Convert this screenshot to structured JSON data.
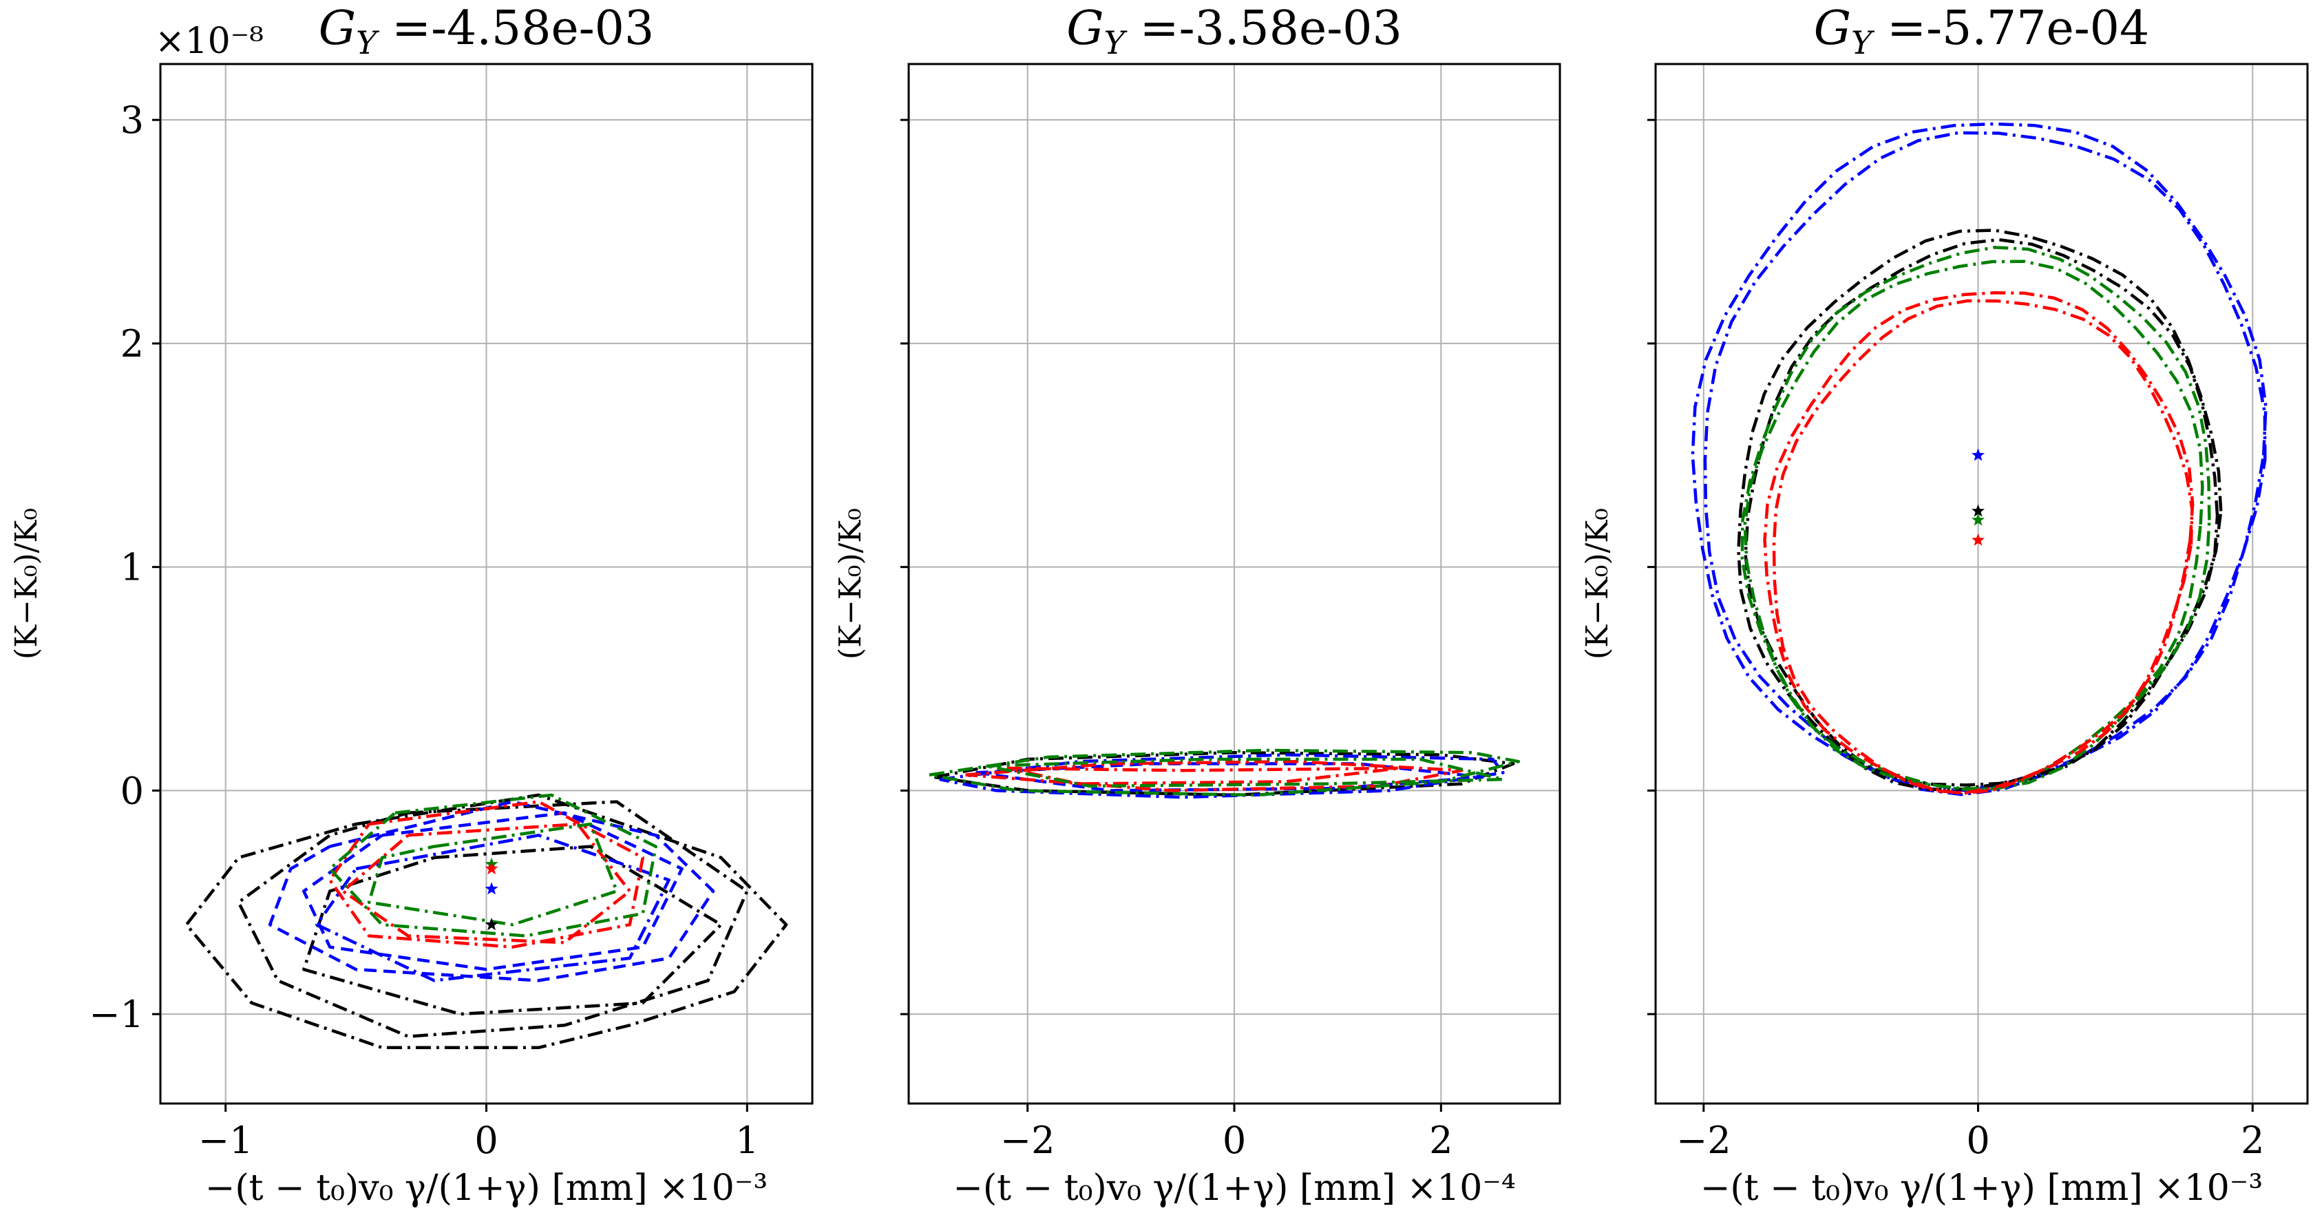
{
  "figure": {
    "colors": {
      "black": "#000000",
      "blue": "#0000ff",
      "red": "#ff0000",
      "green": "#008000",
      "grid": "#b0b0b0"
    }
  },
  "chart_data": [
    {
      "type": "line",
      "title": "G_Y =-4.58e-03",
      "title_parts": {
        "symbol": "G",
        "sub": "Y",
        "value": " =-4.58e-03"
      },
      "xlabel": "−(t − t₀)v₀ γ/(1+γ) [mm]",
      "ylabel": "(K−K₀)/K₀",
      "x_offset_text": "×10⁻³",
      "y_offset_text": "×10⁻⁸",
      "xlim": [
        -1.25,
        1.25
      ],
      "ylim": [
        -1.4,
        3.25
      ],
      "xticks": [
        -1,
        0,
        1
      ],
      "xtick_labels": [
        "−1",
        "0",
        "1"
      ],
      "yticks": [
        -1,
        0,
        1,
        2,
        3
      ],
      "ytick_labels": [
        "−1",
        "0",
        "1",
        "2",
        "3"
      ],
      "grid": true,
      "series": [
        {
          "color": "black",
          "dash": "dashdot",
          "points": [
            [
              -0.5,
              -0.15
            ],
            [
              0.2,
              -0.02
            ],
            [
              0.9,
              -0.3
            ],
            [
              1.15,
              -0.6
            ],
            [
              0.95,
              -0.9
            ],
            [
              0.55,
              -1.05
            ],
            [
              0.2,
              -1.15
            ],
            [
              -0.4,
              -1.15
            ],
            [
              -0.9,
              -0.95
            ],
            [
              -1.15,
              -0.6
            ],
            [
              -0.95,
              -0.3
            ],
            [
              -0.5,
              -0.15
            ]
          ]
        },
        {
          "color": "black",
          "dash": "dashdot",
          "points": [
            [
              -0.3,
              -0.1
            ],
            [
              0.5,
              -0.05
            ],
            [
              1.0,
              -0.45
            ],
            [
              0.85,
              -0.85
            ],
            [
              0.3,
              -1.05
            ],
            [
              -0.3,
              -1.1
            ],
            [
              -0.8,
              -0.85
            ],
            [
              -0.95,
              -0.5
            ],
            [
              -0.6,
              -0.2
            ],
            [
              -0.3,
              -0.1
            ]
          ]
        },
        {
          "color": "black",
          "dash": "dashdot",
          "points": [
            [
              -0.2,
              -0.3
            ],
            [
              0.4,
              -0.25
            ],
            [
              0.9,
              -0.6
            ],
            [
              0.6,
              -0.95
            ],
            [
              -0.1,
              -1.0
            ],
            [
              -0.7,
              -0.8
            ],
            [
              -0.6,
              -0.45
            ],
            [
              -0.2,
              -0.3
            ]
          ]
        },
        {
          "color": "blue",
          "dash": "dashed",
          "points": [
            [
              -0.6,
              -0.25
            ],
            [
              0.1,
              -0.05
            ],
            [
              0.65,
              -0.2
            ],
            [
              0.87,
              -0.45
            ],
            [
              0.7,
              -0.75
            ],
            [
              0.2,
              -0.85
            ],
            [
              -0.5,
              -0.8
            ],
            [
              -0.83,
              -0.6
            ],
            [
              -0.75,
              -0.35
            ],
            [
              -0.6,
              -0.25
            ]
          ]
        },
        {
          "color": "blue",
          "dash": "dashed",
          "points": [
            [
              -0.4,
              -0.2
            ],
            [
              0.3,
              -0.1
            ],
            [
              0.75,
              -0.35
            ],
            [
              0.6,
              -0.7
            ],
            [
              0.0,
              -0.8
            ],
            [
              -0.6,
              -0.7
            ],
            [
              -0.7,
              -0.45
            ],
            [
              -0.4,
              -0.2
            ]
          ]
        },
        {
          "color": "blue",
          "dash": "dashdot",
          "points": [
            [
              -0.5,
              -0.35
            ],
            [
              0.2,
              -0.2
            ],
            [
              0.7,
              -0.4
            ],
            [
              0.55,
              -0.75
            ],
            [
              -0.2,
              -0.85
            ],
            [
              -0.65,
              -0.6
            ],
            [
              -0.5,
              -0.35
            ]
          ]
        },
        {
          "color": "red",
          "dash": "dashdot",
          "points": [
            [
              -0.45,
              -0.15
            ],
            [
              0.2,
              -0.05
            ],
            [
              0.6,
              -0.3
            ],
            [
              0.55,
              -0.6
            ],
            [
              0.1,
              -0.7
            ],
            [
              -0.45,
              -0.65
            ],
            [
              -0.6,
              -0.4
            ],
            [
              -0.45,
              -0.15
            ]
          ]
        },
        {
          "color": "red",
          "dash": "dashdot",
          "points": [
            [
              -0.3,
              -0.2
            ],
            [
              0.35,
              -0.15
            ],
            [
              0.55,
              -0.45
            ],
            [
              0.3,
              -0.68
            ],
            [
              -0.3,
              -0.65
            ],
            [
              -0.55,
              -0.45
            ],
            [
              -0.3,
              -0.2
            ]
          ]
        },
        {
          "color": "green",
          "dash": "dashdot",
          "points": [
            [
              -0.35,
              -0.1
            ],
            [
              0.25,
              -0.02
            ],
            [
              0.65,
              -0.25
            ],
            [
              0.6,
              -0.55
            ],
            [
              0.15,
              -0.65
            ],
            [
              -0.4,
              -0.6
            ],
            [
              -0.6,
              -0.35
            ],
            [
              -0.35,
              -0.1
            ]
          ]
        },
        {
          "color": "green",
          "dash": "dashdot",
          "points": [
            [
              -0.2,
              -0.25
            ],
            [
              0.4,
              -0.15
            ],
            [
              0.5,
              -0.45
            ],
            [
              0.1,
              -0.6
            ],
            [
              -0.45,
              -0.5
            ],
            [
              -0.4,
              -0.3
            ],
            [
              -0.2,
              -0.25
            ]
          ]
        }
      ],
      "centers": [
        {
          "color": "black",
          "x": 0.02,
          "y": -0.6
        },
        {
          "color": "green",
          "x": 0.02,
          "y": -0.33
        },
        {
          "color": "red",
          "x": 0.02,
          "y": -0.35
        },
        {
          "color": "blue",
          "x": 0.02,
          "y": -0.44
        }
      ]
    },
    {
      "type": "line",
      "title": "G_Y =-3.58e-03",
      "title_parts": {
        "symbol": "G",
        "sub": "Y",
        "value": " =-3.58e-03"
      },
      "xlabel": "−(t − t₀)v₀ γ/(1+γ) [mm]",
      "ylabel": "(K−K₀)/K₀",
      "x_offset_text": "×10⁻⁴",
      "y_offset_text": "",
      "xlim": [
        -3.15,
        3.15
      ],
      "ylim": [
        -1.4,
        3.25
      ],
      "xticks": [
        -2,
        0,
        2
      ],
      "xtick_labels": [
        "−2",
        "0",
        "2"
      ],
      "yticks": [
        -1,
        0,
        1,
        2,
        3
      ],
      "ytick_labels": [
        "",
        "",
        "",
        "",
        ""
      ],
      "grid": true,
      "series": [
        {
          "color": "black",
          "dash": "dashdot",
          "points": [
            [
              -2.9,
              0.06
            ],
            [
              -2.0,
              0.14
            ],
            [
              0.0,
              0.17
            ],
            [
              2.0,
              0.16
            ],
            [
              2.7,
              0.12
            ],
            [
              2.2,
              0.03
            ],
            [
              0.0,
              -0.02
            ],
            [
              -2.0,
              0.0
            ],
            [
              -2.9,
              0.06
            ]
          ]
        },
        {
          "color": "blue",
          "dash": "dashdot",
          "points": [
            [
              -2.85,
              0.05
            ],
            [
              -1.5,
              0.13
            ],
            [
              0.5,
              0.16
            ],
            [
              2.5,
              0.14
            ],
            [
              2.6,
              0.08
            ],
            [
              1.5,
              0.0
            ],
            [
              -0.5,
              -0.03
            ],
            [
              -2.3,
              0.0
            ],
            [
              -2.85,
              0.05
            ]
          ]
        },
        {
          "color": "blue",
          "dash": "dashed",
          "points": [
            [
              -2.5,
              0.08
            ],
            [
              -0.8,
              0.12
            ],
            [
              1.2,
              0.12
            ],
            [
              2.4,
              0.06
            ],
            [
              1.0,
              0.01
            ],
            [
              -1.2,
              0.0
            ],
            [
              -2.5,
              0.08
            ]
          ]
        },
        {
          "color": "red",
          "dash": "dashdot",
          "points": [
            [
              -2.6,
              0.07
            ],
            [
              -1.2,
              0.12
            ],
            [
              0.6,
              0.13
            ],
            [
              2.2,
              0.09
            ],
            [
              1.4,
              0.02
            ],
            [
              -0.6,
              0.0
            ],
            [
              -2.6,
              0.07
            ]
          ]
        },
        {
          "color": "red",
          "dash": "dashdot",
          "points": [
            [
              -2.2,
              0.1
            ],
            [
              -0.5,
              0.09
            ],
            [
              1.6,
              0.1
            ],
            [
              0.5,
              0.04
            ],
            [
              -1.5,
              0.03
            ],
            [
              -2.2,
              0.1
            ]
          ]
        },
        {
          "color": "green",
          "dash": "dashdot",
          "points": [
            [
              -2.95,
              0.07
            ],
            [
              -1.8,
              0.15
            ],
            [
              0.3,
              0.18
            ],
            [
              2.3,
              0.17
            ],
            [
              2.75,
              0.13
            ],
            [
              2.0,
              0.04
            ],
            [
              0.2,
              -0.02
            ],
            [
              -2.1,
              0.0
            ],
            [
              -2.95,
              0.07
            ]
          ]
        },
        {
          "color": "green",
          "dash": "dashdot",
          "points": [
            [
              -2.4,
              0.11
            ],
            [
              -0.3,
              0.14
            ],
            [
              1.8,
              0.14
            ],
            [
              2.6,
              0.05
            ],
            [
              0.9,
              0.03
            ],
            [
              -1.4,
              0.02
            ],
            [
              -2.4,
              0.11
            ]
          ]
        }
      ],
      "centers": []
    },
    {
      "type": "line",
      "title": "G_Y =-5.77e-04",
      "title_parts": {
        "symbol": "G",
        "sub": "Y",
        "value": " =-5.77e-04"
      },
      "xlabel": "−(t − t₀)v₀ γ/(1+γ) [mm]",
      "ylabel": "(K−K₀)/K₀",
      "x_offset_text": "×10⁻³",
      "y_offset_text": "",
      "xlim": [
        -2.35,
        2.4
      ],
      "ylim": [
        -1.4,
        3.25
      ],
      "xticks": [
        -2,
        0,
        2
      ],
      "xtick_labels": [
        "−2",
        "0",
        "2"
      ],
      "yticks": [
        -1,
        0,
        1,
        2,
        3
      ],
      "ytick_labels": [
        "",
        "",
        "",
        "",
        ""
      ],
      "grid": true,
      "series": [
        {
          "color": "blue",
          "dash": "dashdot",
          "ellipse": {
            "cx": 0.0,
            "cy": 1.5,
            "rx": 2.08,
            "ry": 1.5,
            "tilt": 0.15
          }
        },
        {
          "color": "blue",
          "dash": "dashdot",
          "ellipse": {
            "cx": 0.03,
            "cy": 1.48,
            "rx": 2.04,
            "ry": 1.47,
            "tilt": 0.15
          }
        },
        {
          "color": "black",
          "dash": "dashdot",
          "ellipse": {
            "cx": 0.0,
            "cy": 1.25,
            "rx": 1.75,
            "ry": 1.25,
            "tilt": 0.15
          }
        },
        {
          "color": "black",
          "dash": "dashdot",
          "ellipse": {
            "cx": 0.03,
            "cy": 1.23,
            "rx": 1.71,
            "ry": 1.22,
            "tilt": 0.15
          }
        },
        {
          "color": "green",
          "dash": "dashdot",
          "ellipse": {
            "cx": 0.0,
            "cy": 1.21,
            "rx": 1.7,
            "ry": 1.21,
            "tilt": 0.15
          }
        },
        {
          "color": "green",
          "dash": "dashdot",
          "ellipse": {
            "cx": -0.02,
            "cy": 1.19,
            "rx": 1.66,
            "ry": 1.18,
            "tilt": 0.15
          }
        },
        {
          "color": "red",
          "dash": "dashdot",
          "ellipse": {
            "cx": 0.0,
            "cy": 1.12,
            "rx": 1.55,
            "ry": 1.12,
            "tilt": 0.15
          }
        },
        {
          "color": "red",
          "dash": "dashdot",
          "ellipse": {
            "cx": 0.02,
            "cy": 1.1,
            "rx": 1.52,
            "ry": 1.1,
            "tilt": 0.15
          }
        }
      ],
      "centers": [
        {
          "color": "blue",
          "x": 0.0,
          "y": 1.5
        },
        {
          "color": "black",
          "x": 0.0,
          "y": 1.25
        },
        {
          "color": "green",
          "x": 0.0,
          "y": 1.21
        },
        {
          "color": "red",
          "x": 0.0,
          "y": 1.12
        }
      ]
    }
  ]
}
